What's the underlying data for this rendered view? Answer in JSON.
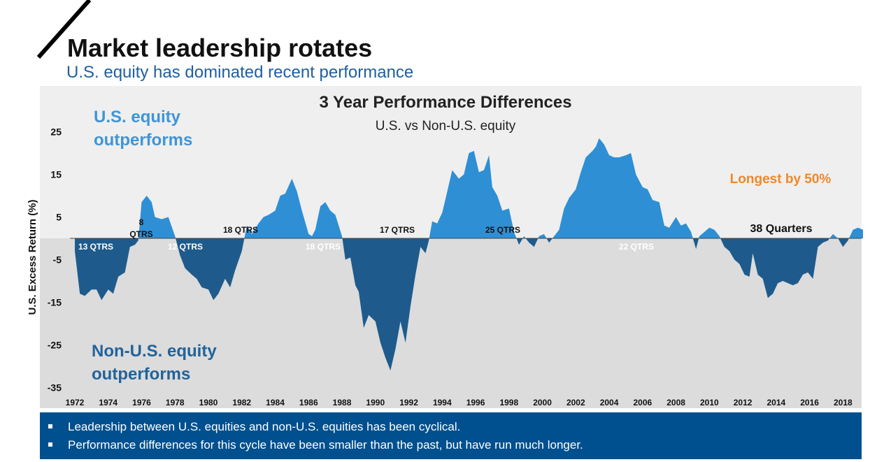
{
  "header": {
    "title": "Market leadership rotates",
    "subtitle": "U.S. equity has dominated recent performance"
  },
  "chart_data": {
    "type": "area",
    "title": "3 Year Performance Differences",
    "subtitle": "U.S. vs Non-U.S. equity",
    "ylabel": "U.S. Excess Return (%)",
    "xlabel": "",
    "ylim": [
      -37,
      32
    ],
    "xlim": [
      1972,
      2019.2
    ],
    "yticks": [
      "25",
      "15",
      "5",
      "-5",
      "-15",
      "-25",
      "-35"
    ],
    "ytick_values": [
      25,
      15,
      5,
      -5,
      -15,
      -25,
      -35
    ],
    "xticks": [
      "1972",
      "1974",
      "1976",
      "1978",
      "1980",
      "1982",
      "1984",
      "1986",
      "1988",
      "1990",
      "1992",
      "1994",
      "1996",
      "1998",
      "2000",
      "2002",
      "2004",
      "2006",
      "2008",
      "2010",
      "2012",
      "2014",
      "2016",
      "2018"
    ],
    "colors": {
      "positive": "#2e8fd5",
      "negative": "#1e5b8c",
      "upper_bg": "#efefef",
      "lower_bg": "#dcdcdc",
      "accent": "#f0882a"
    },
    "region_labels": {
      "us_outperforms": [
        "U.S. equity",
        "outperforms"
      ],
      "non_us_outperforms": [
        "Non-U.S. equity",
        "outperforms"
      ]
    },
    "annotations": {
      "a1": "13 QTRS",
      "a2": [
        "8",
        "QTRS"
      ],
      "a3": "12 QTRS",
      "a4": "18 QTRS",
      "a5": "18 QTRS",
      "a6": "17 QTRS",
      "a7": "25 QTRS",
      "a8": "22 QTRS",
      "a9": "38 Quarters",
      "longest": "Longest by 50%"
    },
    "series": [
      {
        "values": [
          [
            1972.0,
            -3
          ],
          [
            1972.3,
            -13
          ],
          [
            1972.6,
            -13.5
          ],
          [
            1973.0,
            -12
          ],
          [
            1973.3,
            -12
          ],
          [
            1973.6,
            -14.5
          ],
          [
            1974.0,
            -12
          ],
          [
            1974.3,
            -13
          ],
          [
            1974.6,
            -9
          ],
          [
            1975.0,
            -8
          ],
          [
            1975.3,
            -2
          ],
          [
            1975.6,
            -1.5
          ],
          [
            1975.8,
            -0.5
          ],
          [
            1976.0,
            8.5
          ],
          [
            1976.3,
            10
          ],
          [
            1976.6,
            8.5
          ],
          [
            1976.8,
            5
          ],
          [
            1977.2,
            4.5
          ],
          [
            1977.6,
            5
          ],
          [
            1978.0,
            0.5
          ],
          [
            1978.3,
            -4
          ],
          [
            1978.6,
            -7
          ],
          [
            1979.0,
            -8.5
          ],
          [
            1979.3,
            -9.5
          ],
          [
            1979.6,
            -11.5
          ],
          [
            1980.0,
            -12
          ],
          [
            1980.3,
            -14.5
          ],
          [
            1980.6,
            -13
          ],
          [
            1981.0,
            -9.5
          ],
          [
            1981.3,
            -11.5
          ],
          [
            1981.6,
            -7.5
          ],
          [
            1982.0,
            -3
          ],
          [
            1982.3,
            3
          ],
          [
            1982.6,
            1
          ],
          [
            1983.0,
            3.5
          ],
          [
            1983.3,
            5
          ],
          [
            1983.6,
            5.5
          ],
          [
            1984.0,
            6.5
          ],
          [
            1984.3,
            10
          ],
          [
            1984.6,
            10.5
          ],
          [
            1985.0,
            14
          ],
          [
            1985.3,
            11
          ],
          [
            1985.6,
            6.5
          ],
          [
            1986.0,
            1
          ],
          [
            1986.2,
            0.5
          ],
          [
            1986.4,
            2
          ],
          [
            1986.7,
            7.5
          ],
          [
            1987.0,
            8.5
          ],
          [
            1987.3,
            6.5
          ],
          [
            1987.6,
            5.5
          ],
          [
            1988.0,
            0.5
          ],
          [
            1988.2,
            -5
          ],
          [
            1988.5,
            -4.5
          ],
          [
            1988.8,
            -11
          ],
          [
            1989.0,
            -12.5
          ],
          [
            1989.3,
            -21
          ],
          [
            1989.6,
            -18
          ],
          [
            1990.0,
            -19.5
          ],
          [
            1990.3,
            -24.5
          ],
          [
            1990.6,
            -28
          ],
          [
            1990.9,
            -31
          ],
          [
            1991.2,
            -26
          ],
          [
            1991.5,
            -19.5
          ],
          [
            1991.8,
            -24.5
          ],
          [
            1992.1,
            -16
          ],
          [
            1992.4,
            -8.5
          ],
          [
            1992.7,
            -2
          ],
          [
            1993.0,
            -3.5
          ],
          [
            1993.2,
            -0.5
          ],
          [
            1993.4,
            4
          ],
          [
            1993.7,
            3.5
          ],
          [
            1994.0,
            6
          ],
          [
            1994.3,
            11
          ],
          [
            1994.6,
            16
          ],
          [
            1995.0,
            14
          ],
          [
            1995.3,
            15
          ],
          [
            1995.6,
            20
          ],
          [
            1995.9,
            20.5
          ],
          [
            1996.2,
            15.5
          ],
          [
            1996.5,
            16
          ],
          [
            1996.8,
            19.5
          ],
          [
            1997.0,
            12
          ],
          [
            1997.3,
            10
          ],
          [
            1997.6,
            6.5
          ],
          [
            1998.0,
            7
          ],
          [
            1998.3,
            1.5
          ],
          [
            1998.6,
            -1.5
          ],
          [
            1998.9,
            0.5
          ],
          [
            1999.2,
            -1
          ],
          [
            1999.5,
            -2
          ],
          [
            1999.8,
            0.5
          ],
          [
            2000.1,
            1
          ],
          [
            2000.4,
            -1
          ],
          [
            2000.7,
            0.5
          ],
          [
            2001.0,
            2
          ],
          [
            2001.3,
            7
          ],
          [
            2001.6,
            9.5
          ],
          [
            2002.0,
            11.5
          ],
          [
            2002.3,
            15.5
          ],
          [
            2002.6,
            19
          ],
          [
            2003.0,
            20.5
          ],
          [
            2003.2,
            21.5
          ],
          [
            2003.4,
            23.5
          ],
          [
            2003.7,
            22
          ],
          [
            2004.0,
            19.5
          ],
          [
            2004.3,
            19
          ],
          [
            2004.6,
            19
          ],
          [
            2005.0,
            19.5
          ],
          [
            2005.3,
            20
          ],
          [
            2005.6,
            15
          ],
          [
            2006.0,
            12
          ],
          [
            2006.3,
            11.5
          ],
          [
            2006.6,
            9
          ],
          [
            2007.0,
            8.5
          ],
          [
            2007.3,
            3
          ],
          [
            2007.6,
            2.5
          ],
          [
            2008.0,
            5
          ],
          [
            2008.3,
            3
          ],
          [
            2008.6,
            3.5
          ],
          [
            2008.9,
            1.5
          ],
          [
            2009.2,
            -2.5
          ],
          [
            2009.4,
            0.5
          ],
          [
            2009.7,
            1.5
          ],
          [
            2010.0,
            2.5
          ],
          [
            2010.3,
            2
          ],
          [
            2010.6,
            0.5
          ],
          [
            2010.9,
            -2
          ],
          [
            2011.2,
            -3
          ],
          [
            2011.5,
            -5
          ],
          [
            2011.8,
            -6
          ],
          [
            2012.1,
            -8.5
          ],
          [
            2012.4,
            -9
          ],
          [
            2012.6,
            -3.5
          ],
          [
            2012.9,
            -8.5
          ],
          [
            2013.2,
            -9.5
          ],
          [
            2013.5,
            -14
          ],
          [
            2013.8,
            -13
          ],
          [
            2014.1,
            -10.5
          ],
          [
            2014.4,
            -10
          ],
          [
            2014.7,
            -10.5
          ],
          [
            2015.0,
            -11
          ],
          [
            2015.3,
            -10.5
          ],
          [
            2015.6,
            -8.5
          ],
          [
            2015.9,
            -8
          ],
          [
            2016.2,
            -9.5
          ],
          [
            2016.5,
            -2
          ],
          [
            2016.8,
            -1
          ],
          [
            2017.1,
            -0.5
          ],
          [
            2017.4,
            1
          ],
          [
            2017.7,
            0
          ],
          [
            2018.0,
            -2
          ],
          [
            2018.3,
            -0.5
          ],
          [
            2018.6,
            2
          ],
          [
            2018.9,
            2.5
          ],
          [
            2019.2,
            2
          ]
        ]
      }
    ]
  },
  "footer": {
    "bullets": [
      "Leadership between U.S. equities and non-U.S. equities has been cyclical.",
      "Performance differences for this cycle have been smaller than the past, but have run much longer."
    ]
  }
}
